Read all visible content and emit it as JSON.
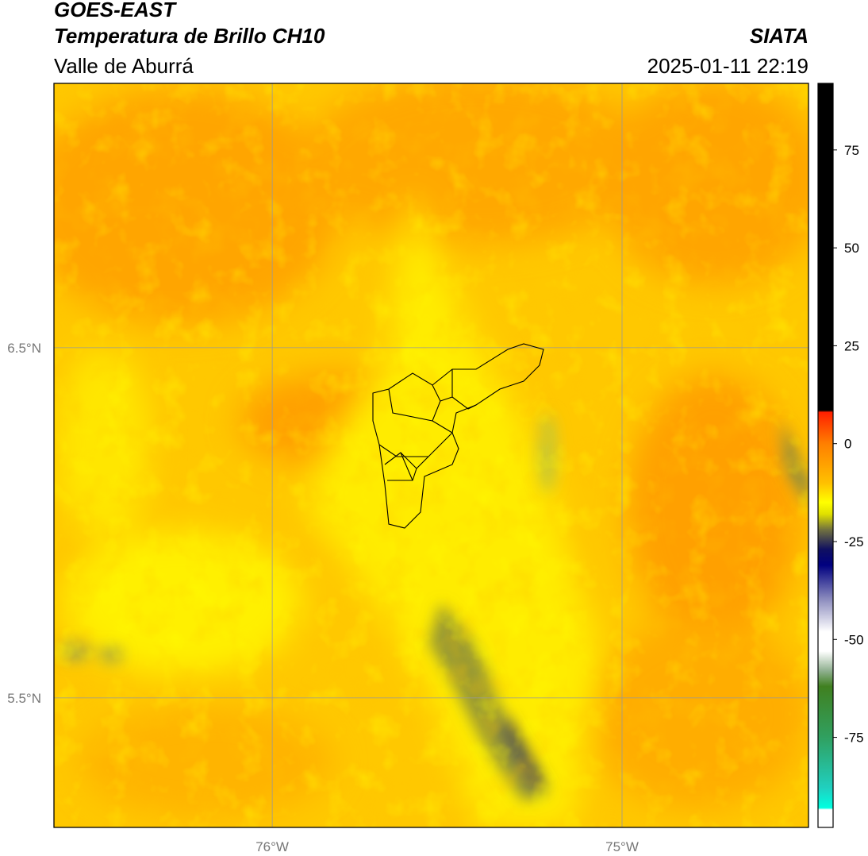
{
  "header": {
    "title": "GOES-EAST",
    "subtitle": "Temperatura de Brillo CH10",
    "region": "Valle de Aburrá",
    "source": "SIATA",
    "datetime": "2025-01-11 22:19"
  },
  "map": {
    "xlim": [
      -76.624,
      -74.467
    ],
    "ylim": [
      5.13,
      7.255
    ],
    "xticks": [
      {
        "value": -76,
        "label": "76°W"
      },
      {
        "value": -75,
        "label": "75°W"
      }
    ],
    "yticks": [
      {
        "value": 6.5,
        "label": "6.5°N"
      },
      {
        "value": 5.5,
        "label": "5.5°N"
      }
    ],
    "grid": true
  },
  "colorbar": {
    "lim": [
      -98,
      92
    ],
    "ticks": [
      75,
      50,
      25,
      0,
      -25,
      -50,
      -75
    ],
    "stops": [
      {
        "value": 92,
        "color": "#000000"
      },
      {
        "value": 8.5,
        "color": "#000000"
      },
      {
        "value": 8,
        "color": "#ff2000"
      },
      {
        "value": 0,
        "color": "#ff7f00"
      },
      {
        "value": -10,
        "color": "#ffc000"
      },
      {
        "value": -15,
        "color": "#ffff00"
      },
      {
        "value": -18,
        "color": "#e0e000"
      },
      {
        "value": -22,
        "color": "#707040"
      },
      {
        "value": -27,
        "color": "#101060"
      },
      {
        "value": -31,
        "color": "#000080"
      },
      {
        "value": -40,
        "color": "#9090c0"
      },
      {
        "value": -48,
        "color": "#ffffff"
      },
      {
        "value": -53,
        "color": "#ffffff"
      },
      {
        "value": -58,
        "color": "#90b090"
      },
      {
        "value": -62,
        "color": "#408020"
      },
      {
        "value": -75,
        "color": "#30a060"
      },
      {
        "value": -88,
        "color": "#20d0c0"
      },
      {
        "value": -93,
        "color": "#00ffe0"
      },
      {
        "value": -93.5,
        "color": "#ffffff"
      },
      {
        "value": -98,
        "color": "#ffffff"
      }
    ]
  }
}
